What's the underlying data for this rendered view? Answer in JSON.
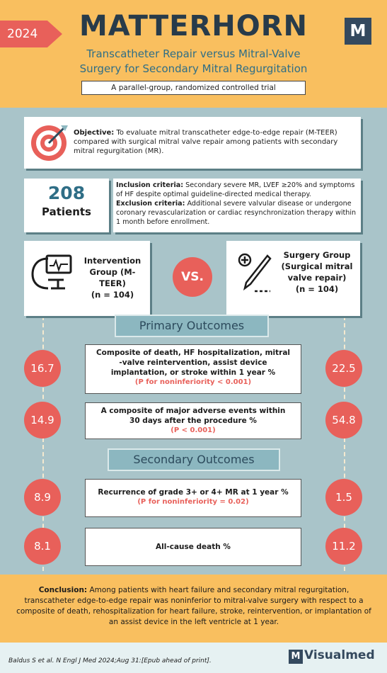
{
  "header": {
    "year": "2024",
    "title": "MATTERHORN",
    "logo_letter": "M",
    "subtitle_line1": "Transcatheter Repair versus Mitral-Valve",
    "subtitle_line2": "Surgery for Secondary Mitral Regurgitation",
    "trial_type": "A parallel-group, randomized controlled trial"
  },
  "objective": {
    "label": "Objective:",
    "text": "To evaluate mitral transcatheter edge-to-edge repair (M-TEER) compared with surgical mitral valve repair among patients with secondary mitral regurgitation (MR)."
  },
  "patients": {
    "count": "208",
    "label": "Patients"
  },
  "criteria": {
    "inclusion_label": "Inclusion criteria:",
    "inclusion_text": "Secondary severe MR, LVEF ≥20% and symptoms of HF despite optimal guideline-directed medical therapy.",
    "exclusion_label": "Exclusion criteria:",
    "exclusion_text": "Additional severe valvular disease or undergone coronary revascularization or cardiac resynchronization therapy within 1 month before enrollment."
  },
  "groups": {
    "intervention": {
      "line1": "Intervention",
      "line2": "Group (M-TEER)",
      "n": "(n = 104)"
    },
    "vs": "VS.",
    "surgery": {
      "line1": "Surgery Group",
      "line2": "(Surgical mitral",
      "line3": "valve repair)",
      "n": "(n = 104)"
    }
  },
  "primary": {
    "title": "Primary Outcomes",
    "outcomes": [
      {
        "line1": "Composite of death, HF hospitalization, mitral",
        "line2": "-valve reintervention, assist device",
        "line3": "implantation, or stroke within 1 year %",
        "p": "(P for noninferiority < 0.001)",
        "left": "16.7",
        "right": "22.5"
      },
      {
        "line1": "A composite of major adverse events within",
        "line2": "30 days after the procedure %",
        "p": "(P < 0.001)",
        "left": "14.9",
        "right": "54.8"
      }
    ]
  },
  "secondary": {
    "title": "Secondary Outcomes",
    "outcomes": [
      {
        "line1": "Recurrence of grade 3+ or 4+ MR at 1 year %",
        "p": "(P for noninferiority = 0.02)",
        "left": "8.9",
        "right": "1.5"
      },
      {
        "line1": "All-cause death %",
        "left": "8.1",
        "right": "11.2"
      }
    ]
  },
  "conclusion": {
    "label": "Conclusion:",
    "text": "Among patients with heart failure and secondary mitral regurgitation, transcatheter edge-to-edge repair was noninferior to mitral-valve surgery with respect to a composite of death, rehospitalization for heart failure, stroke, reintervention, or implantation of an assist device in the left ventricle at 1 year."
  },
  "footer": {
    "citation": "Baldus S et al. N Engl J Med 2024;Aug 31:[Epub ahead of print].",
    "brand_letter": "M",
    "brand": "Visualmed"
  },
  "colors": {
    "header_bg": "#f9bf5f",
    "accent_red": "#e8605a",
    "body_bg": "#a9c4c9",
    "navy": "#283b4a",
    "teal": "#2f6e86"
  }
}
